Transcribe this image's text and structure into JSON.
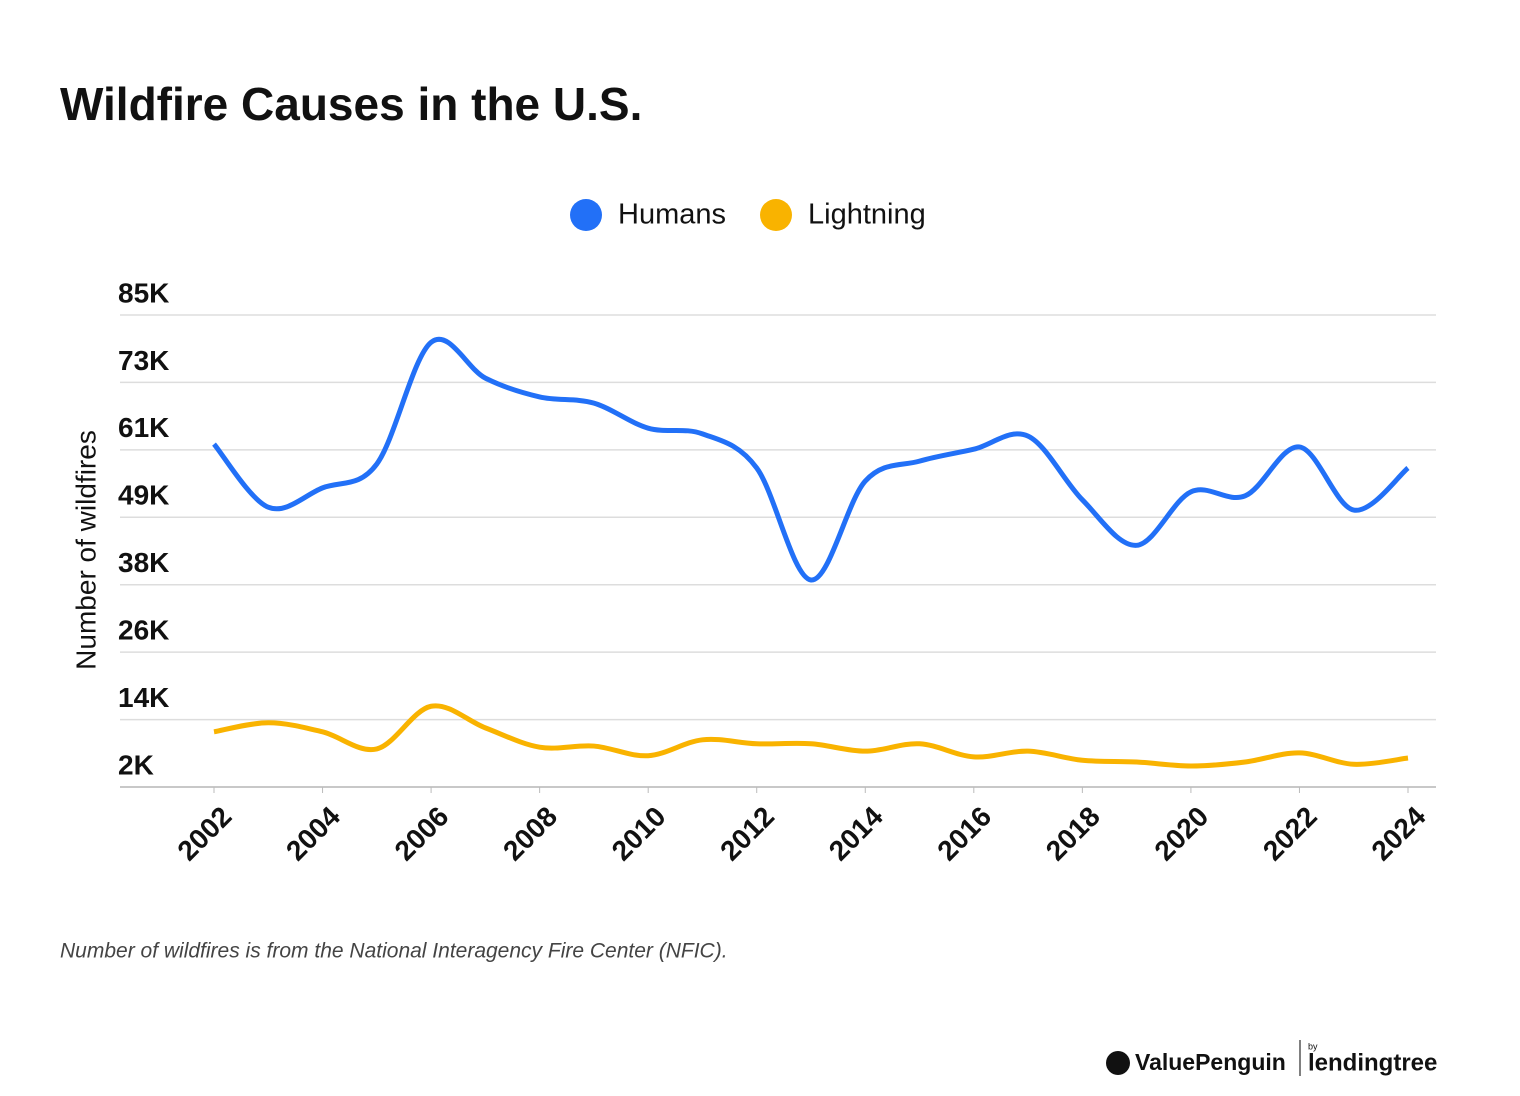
{
  "chart_data": {
    "type": "line",
    "title": "Wildfire Causes in the U.S.",
    "y_label": "Number of wildfires",
    "x": [
      2002,
      2003,
      2004,
      2005,
      2006,
      2007,
      2008,
      2009,
      2010,
      2011,
      2012,
      2013,
      2014,
      2015,
      2016,
      2017,
      2018,
      2019,
      2020,
      2021,
      2022,
      2023,
      2024
    ],
    "series": [
      {
        "name": "Humans",
        "color": "#2270f7",
        "values": [
          62300,
          51200,
          54600,
          58800,
          80200,
          73900,
          70600,
          69500,
          65100,
          64100,
          58100,
          38400,
          55800,
          59300,
          61400,
          63700,
          52500,
          44500,
          53900,
          53200,
          61800,
          50700,
          58100
        ]
      },
      {
        "name": "Lightning",
        "color": "#f9b300",
        "values": [
          11700,
          13300,
          11700,
          8700,
          16200,
          12400,
          9000,
          9200,
          7500,
          10300,
          9600,
          9600,
          8300,
          9600,
          7300,
          8300,
          6700,
          6400,
          5700,
          6400,
          8000,
          6000,
          7100
        ]
      }
    ],
    "xlim": [
      2002,
      2024
    ],
    "xticks": [
      2002,
      2004,
      2006,
      2008,
      2010,
      2012,
      2014,
      2016,
      2018,
      2020,
      2022,
      2024
    ],
    "ylim": [
      2000,
      85000
    ],
    "yticks": [
      {
        "value": 2000,
        "label": "2K"
      },
      {
        "value": 13857,
        "label": "14K"
      },
      {
        "value": 25714,
        "label": "26K"
      },
      {
        "value": 37571,
        "label": "38K"
      },
      {
        "value": 49429,
        "label": "49K"
      },
      {
        "value": 61286,
        "label": "61K"
      },
      {
        "value": 73143,
        "label": "73K"
      },
      {
        "value": 85000,
        "label": "85K"
      }
    ],
    "grid": true,
    "legend": "top",
    "footnote": "Number of wildfires is from the National Interagency Fire Center (NFIC).",
    "branding": {
      "left": "ValuePenguin",
      "by": "by",
      "right": "lendingtree"
    }
  }
}
